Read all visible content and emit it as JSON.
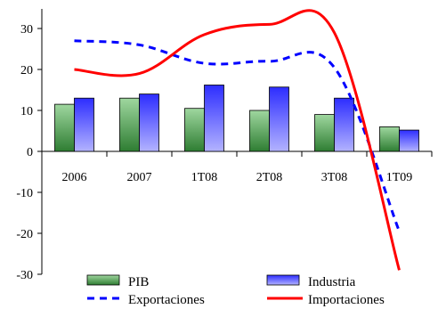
{
  "chart_data": {
    "type": "bar",
    "categories": [
      "2006",
      "2007",
      "1T08",
      "2T08",
      "3T08",
      "1T09"
    ],
    "ylim": [
      -30,
      30
    ],
    "yticks": [
      -30,
      -20,
      -10,
      0,
      10,
      20,
      30
    ],
    "series": [
      {
        "name": "PIB",
        "kind": "bar",
        "values": [
          11.5,
          13.0,
          10.5,
          10.0,
          9.0,
          6.0
        ],
        "color_top": "#9fd79f",
        "color_bottom": "#2e7d32"
      },
      {
        "name": "Industria",
        "kind": "bar",
        "values": [
          13.0,
          14.0,
          16.2,
          15.7,
          13.0,
          5.2
        ],
        "color_top": "#2d2dff",
        "color_bottom": "#b3b3ff"
      },
      {
        "name": "Exportaciones",
        "kind": "dashed-line",
        "values": [
          27.0,
          26.0,
          21.5,
          22.0,
          20.5,
          -19.5
        ],
        "color": "#0000ff"
      },
      {
        "name": "Importaciones",
        "kind": "line",
        "values": [
          20.0,
          19.0,
          28.5,
          31.0,
          29.0,
          -29.0
        ],
        "color": "#ff0000"
      }
    ],
    "legend_position": "bottom",
    "grid": false
  }
}
